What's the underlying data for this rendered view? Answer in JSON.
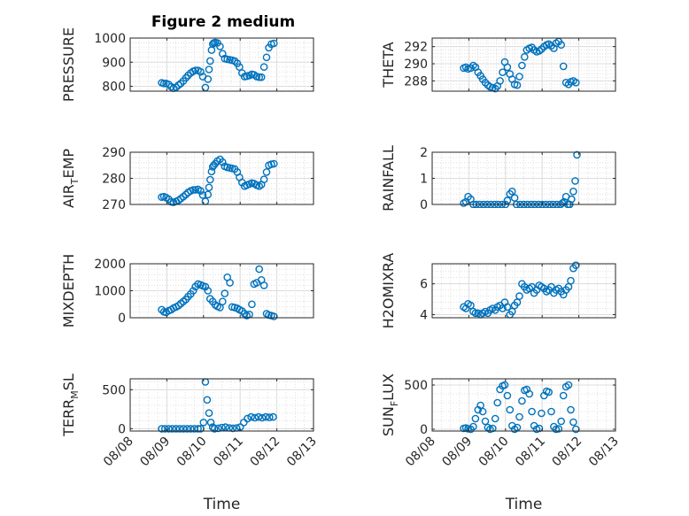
{
  "figure_title": "Figure 2 medium",
  "chart_data": [
    {
      "type": "scatter",
      "ylabel": "PRESSURE",
      "ylabel_parts": [
        "PRESSURE"
      ],
      "ylim": [
        780,
        1000
      ],
      "yticks": [
        800,
        900,
        1000
      ],
      "ytick_labels": [
        "800",
        "900",
        "1000"
      ],
      "xlim": [
        0,
        5
      ],
      "xticks": [
        0,
        1,
        2,
        3,
        4,
        5
      ],
      "xtick_labels": [
        "08/08",
        "08/09",
        "08/10",
        "08/11",
        "08/12",
        "08/13"
      ],
      "grid": true,
      "marker": "open-circle",
      "x": [
        0.86,
        0.92,
        0.98,
        1.05,
        1.12,
        1.18,
        1.25,
        1.32,
        1.38,
        1.45,
        1.52,
        1.58,
        1.65,
        1.72,
        1.78,
        1.85,
        1.92,
        1.98,
        2.05,
        2.12,
        2.15,
        2.18,
        2.22,
        2.25,
        2.28,
        2.32,
        2.38,
        2.45,
        2.52,
        2.58,
        2.65,
        2.72,
        2.78,
        2.85,
        2.92,
        2.98,
        3.05,
        3.12,
        3.18,
        3.25,
        3.32,
        3.38,
        3.45,
        3.52,
        3.58,
        3.65,
        3.72,
        3.78,
        3.85,
        3.92
      ],
      "y": [
        815,
        812,
        812,
        808,
        798,
        792,
        796,
        805,
        812,
        822,
        835,
        845,
        855,
        862,
        866,
        866,
        860,
        840,
        795,
        830,
        870,
        905,
        950,
        975,
        980,
        982,
        980,
        965,
        935,
        915,
        912,
        910,
        908,
        905,
        895,
        880,
        855,
        840,
        842,
        845,
        850,
        848,
        840,
        838,
        838,
        880,
        920,
        960,
        975,
        978
      ]
    },
    {
      "type": "scatter",
      "ylabel": "THETA",
      "ylabel_parts": [
        "THETA"
      ],
      "ylim": [
        286.8,
        293
      ],
      "yticks": [
        288,
        290,
        292
      ],
      "ytick_labels": [
        "288",
        "290",
        "292"
      ],
      "xlim": [
        0,
        5
      ],
      "xticks": [
        0,
        1,
        2,
        3,
        4,
        5
      ],
      "xtick_labels": [
        "08/08",
        "08/09",
        "08/10",
        "08/11",
        "08/12",
        "08/13"
      ],
      "grid": true,
      "marker": "open-circle",
      "x": [
        0.86,
        0.92,
        0.98,
        1.05,
        1.12,
        1.18,
        1.25,
        1.32,
        1.38,
        1.45,
        1.52,
        1.58,
        1.65,
        1.72,
        1.78,
        1.85,
        1.92,
        1.98,
        2.05,
        2.12,
        2.18,
        2.25,
        2.32,
        2.38,
        2.45,
        2.52,
        2.58,
        2.65,
        2.72,
        2.78,
        2.85,
        2.92,
        2.98,
        3.05,
        3.12,
        3.18,
        3.25,
        3.32,
        3.38,
        3.45,
        3.52,
        3.58,
        3.65,
        3.72,
        3.78,
        3.85,
        3.92
      ],
      "y": [
        289.5,
        289.6,
        289.4,
        289.5,
        289.8,
        289.6,
        289.0,
        288.6,
        288.2,
        287.8,
        287.5,
        287.3,
        287.2,
        287.1,
        287.4,
        288.0,
        289.0,
        290.2,
        289.6,
        288.8,
        288.2,
        287.6,
        287.5,
        288.5,
        289.8,
        290.8,
        291.6,
        291.8,
        291.9,
        291.6,
        291.4,
        291.5,
        291.7,
        292.0,
        292.2,
        292.3,
        292.1,
        291.8,
        292.4,
        292.6,
        292.2,
        289.7,
        287.8,
        287.6,
        287.9,
        288.0,
        287.8
      ]
    },
    {
      "type": "scatter",
      "ylabel": "AIR_TEMP",
      "ylabel_parts": [
        "AIR",
        "T",
        "EMP"
      ],
      "ylim": [
        270,
        290
      ],
      "yticks": [
        270,
        280,
        290
      ],
      "ytick_labels": [
        "270",
        "280",
        "290"
      ],
      "xlim": [
        0,
        5
      ],
      "xticks": [
        0,
        1,
        2,
        3,
        4,
        5
      ],
      "xtick_labels": [
        "08/08",
        "08/09",
        "08/10",
        "08/11",
        "08/12",
        "08/13"
      ],
      "grid": true,
      "marker": "open-circle",
      "x": [
        0.86,
        0.92,
        0.98,
        1.05,
        1.12,
        1.18,
        1.25,
        1.32,
        1.38,
        1.45,
        1.52,
        1.58,
        1.65,
        1.72,
        1.78,
        1.85,
        1.92,
        1.98,
        2.05,
        2.12,
        2.15,
        2.18,
        2.22,
        2.25,
        2.28,
        2.32,
        2.38,
        2.45,
        2.52,
        2.58,
        2.65,
        2.72,
        2.78,
        2.85,
        2.92,
        2.98,
        3.05,
        3.12,
        3.18,
        3.25,
        3.32,
        3.38,
        3.45,
        3.52,
        3.58,
        3.65,
        3.72,
        3.78,
        3.85,
        3.92
      ],
      "y": [
        272.8,
        273.0,
        272.6,
        272.0,
        271.0,
        270.8,
        271.2,
        271.6,
        272.2,
        273.0,
        273.8,
        274.6,
        275.2,
        275.6,
        275.6,
        275.8,
        275.2,
        273.6,
        271.2,
        273.8,
        276.5,
        279.5,
        282.6,
        284.4,
        285.0,
        285.6,
        286.6,
        287.3,
        286.2,
        284.6,
        284.2,
        284.0,
        283.8,
        283.6,
        282.4,
        280.4,
        278.4,
        277.0,
        277.4,
        277.8,
        278.2,
        278.0,
        277.4,
        277.0,
        277.6,
        279.6,
        282.4,
        285.0,
        285.4,
        285.6
      ]
    },
    {
      "type": "scatter",
      "ylabel": "RAINFALL",
      "ylabel_parts": [
        "RAINFALL"
      ],
      "ylim": [
        0,
        2
      ],
      "yticks": [
        0,
        1,
        2
      ],
      "ytick_labels": [
        "0",
        "1",
        "2"
      ],
      "xlim": [
        0,
        5
      ],
      "xticks": [
        0,
        1,
        2,
        3,
        4,
        5
      ],
      "xtick_labels": [
        "08/08",
        "08/09",
        "08/10",
        "08/11",
        "08/12",
        "08/13"
      ],
      "grid": true,
      "marker": "open-circle",
      "x": [
        0.86,
        0.92,
        0.98,
        1.05,
        1.12,
        1.2,
        1.3,
        1.4,
        1.5,
        1.6,
        1.7,
        1.8,
        1.9,
        2.0,
        2.05,
        2.12,
        2.18,
        2.25,
        2.3,
        2.4,
        2.5,
        2.6,
        2.7,
        2.8,
        2.9,
        3.0,
        3.1,
        3.2,
        3.3,
        3.4,
        3.5,
        3.55,
        3.6,
        3.65,
        3.7,
        3.75,
        3.8,
        3.85,
        3.9,
        3.95
      ],
      "y": [
        0.05,
        0.1,
        0.3,
        0.2,
        0,
        0,
        0,
        0,
        0,
        0,
        0,
        0,
        0,
        0,
        0.15,
        0.4,
        0.5,
        0.25,
        0,
        0,
        0,
        0,
        0,
        0,
        0,
        0,
        0,
        0,
        0,
        0,
        0,
        0.05,
        0.1,
        0.3,
        0,
        0,
        0.2,
        0.5,
        0.9,
        1.9
      ]
    },
    {
      "type": "scatter",
      "ylabel": "MIXDEPTH",
      "ylabel_parts": [
        "MIXDEPTH"
      ],
      "ylim": [
        0,
        2000
      ],
      "yticks": [
        0,
        1000,
        2000
      ],
      "ytick_labels": [
        "0",
        "1000",
        "2000"
      ],
      "xlim": [
        0,
        5
      ],
      "xticks": [
        0,
        1,
        2,
        3,
        4,
        5
      ],
      "xtick_labels": [
        "08/08",
        "08/09",
        "08/10",
        "08/11",
        "08/12",
        "08/13"
      ],
      "grid": true,
      "marker": "open-circle",
      "x": [
        0.86,
        0.92,
        0.98,
        1.05,
        1.12,
        1.18,
        1.25,
        1.32,
        1.38,
        1.45,
        1.52,
        1.58,
        1.65,
        1.72,
        1.78,
        1.85,
        1.92,
        1.98,
        2.05,
        2.12,
        2.18,
        2.25,
        2.32,
        2.38,
        2.45,
        2.52,
        2.58,
        2.65,
        2.72,
        2.78,
        2.85,
        2.92,
        2.98,
        3.05,
        3.12,
        3.18,
        3.25,
        3.32,
        3.38,
        3.45,
        3.52,
        3.58,
        3.65,
        3.72,
        3.78,
        3.85,
        3.92
      ],
      "y": [
        300,
        220,
        200,
        260,
        300,
        360,
        400,
        450,
        520,
        600,
        680,
        780,
        880,
        1000,
        1150,
        1250,
        1220,
        1180,
        1150,
        1000,
        700,
        600,
        480,
        420,
        380,
        600,
        900,
        1500,
        1300,
        400,
        380,
        350,
        300,
        250,
        150,
        80,
        120,
        500,
        1250,
        1300,
        1800,
        1400,
        1200,
        150,
        100,
        80,
        50
      ]
    },
    {
      "type": "scatter",
      "ylabel": "H2OMIXRA",
      "ylabel_parts": [
        "H2OMIXRA"
      ],
      "ylim": [
        3.8,
        7.3
      ],
      "yticks": [
        4,
        6
      ],
      "ytick_labels": [
        "4",
        "6"
      ],
      "xlim": [
        0,
        5
      ],
      "xticks": [
        0,
        1,
        2,
        3,
        4,
        5
      ],
      "xtick_labels": [
        "08/08",
        "08/09",
        "08/10",
        "08/11",
        "08/12",
        "08/13"
      ],
      "grid": true,
      "marker": "open-circle",
      "x": [
        0.86,
        0.92,
        0.98,
        1.05,
        1.12,
        1.18,
        1.25,
        1.32,
        1.38,
        1.45,
        1.52,
        1.58,
        1.65,
        1.72,
        1.78,
        1.85,
        1.92,
        1.98,
        2.05,
        2.12,
        2.18,
        2.25,
        2.32,
        2.38,
        2.45,
        2.52,
        2.58,
        2.65,
        2.72,
        2.78,
        2.85,
        2.92,
        2.98,
        3.05,
        3.12,
        3.18,
        3.25,
        3.32,
        3.38,
        3.45,
        3.52,
        3.58,
        3.65,
        3.72,
        3.78,
        3.85,
        3.92
      ],
      "y": [
        4.5,
        4.4,
        4.7,
        4.6,
        4.2,
        4.1,
        4.1,
        4.0,
        4.1,
        4.2,
        4.1,
        4.3,
        4.4,
        4.3,
        4.5,
        4.6,
        4.4,
        4.8,
        4.5,
        4.0,
        4.2,
        4.6,
        4.8,
        5.2,
        6.0,
        5.8,
        5.6,
        5.7,
        5.8,
        5.4,
        5.6,
        5.9,
        5.8,
        5.7,
        5.5,
        5.6,
        5.8,
        5.4,
        5.6,
        5.7,
        5.5,
        5.3,
        5.6,
        5.8,
        6.2,
        7.0,
        7.2
      ]
    },
    {
      "type": "scatter",
      "ylabel": "TERR_MSL",
      "ylabel_parts": [
        "TERR",
        "M",
        "SL"
      ],
      "ylim": [
        -30,
        640
      ],
      "yticks": [
        0,
        500
      ],
      "ytick_labels": [
        "0",
        "500"
      ],
      "xlim": [
        0,
        5
      ],
      "xticks": [
        0,
        1,
        2,
        3,
        4,
        5
      ],
      "xtick_labels": [
        "08/08",
        "08/09",
        "08/10",
        "08/11",
        "08/12",
        "08/13"
      ],
      "grid": true,
      "marker": "open-circle",
      "x": [
        0.86,
        0.95,
        1.05,
        1.15,
        1.25,
        1.35,
        1.45,
        1.55,
        1.65,
        1.75,
        1.85,
        1.92,
        2.0,
        2.05,
        2.1,
        2.15,
        2.2,
        2.25,
        2.3,
        2.4,
        2.5,
        2.6,
        2.7,
        2.8,
        2.9,
        3.0,
        3.1,
        3.2,
        3.3,
        3.4,
        3.5,
        3.6,
        3.7,
        3.8,
        3.9
      ],
      "y": [
        0,
        0,
        0,
        0,
        0,
        0,
        0,
        0,
        0,
        0,
        0,
        0,
        80,
        600,
        370,
        200,
        80,
        20,
        0,
        5,
        15,
        20,
        10,
        5,
        10,
        20,
        80,
        130,
        150,
        140,
        150,
        140,
        150,
        145,
        150
      ]
    },
    {
      "type": "scatter",
      "ylabel": "SUN_FLUX",
      "ylabel_parts": [
        "SUN",
        "F",
        "LUX"
      ],
      "ylim": [
        -20,
        570
      ],
      "yticks": [
        0,
        500
      ],
      "ytick_labels": [
        "0",
        "500"
      ],
      "xlim": [
        0,
        5
      ],
      "xticks": [
        0,
        1,
        2,
        3,
        4,
        5
      ],
      "xtick_labels": [
        "08/08",
        "08/09",
        "08/10",
        "08/11",
        "08/12",
        "08/13"
      ],
      "grid": true,
      "marker": "open-circle",
      "x": [
        0.86,
        0.92,
        0.98,
        1.05,
        1.12,
        1.18,
        1.25,
        1.32,
        1.38,
        1.45,
        1.52,
        1.58,
        1.65,
        1.72,
        1.78,
        1.85,
        1.92,
        1.98,
        2.05,
        2.12,
        2.18,
        2.25,
        2.32,
        2.38,
        2.45,
        2.52,
        2.58,
        2.65,
        2.72,
        2.78,
        2.85,
        2.92,
        2.98,
        3.05,
        3.12,
        3.18,
        3.25,
        3.32,
        3.38,
        3.45,
        3.52,
        3.58,
        3.65,
        3.72,
        3.78,
        3.85,
        3.92
      ],
      "y": [
        10,
        15,
        5,
        0,
        30,
        120,
        220,
        270,
        200,
        90,
        20,
        0,
        10,
        120,
        300,
        450,
        490,
        500,
        380,
        220,
        40,
        0,
        20,
        140,
        320,
        440,
        450,
        400,
        200,
        40,
        0,
        10,
        180,
        380,
        430,
        420,
        200,
        30,
        0,
        5,
        90,
        380,
        480,
        500,
        220,
        80,
        0
      ]
    }
  ],
  "xlabel": "Time"
}
